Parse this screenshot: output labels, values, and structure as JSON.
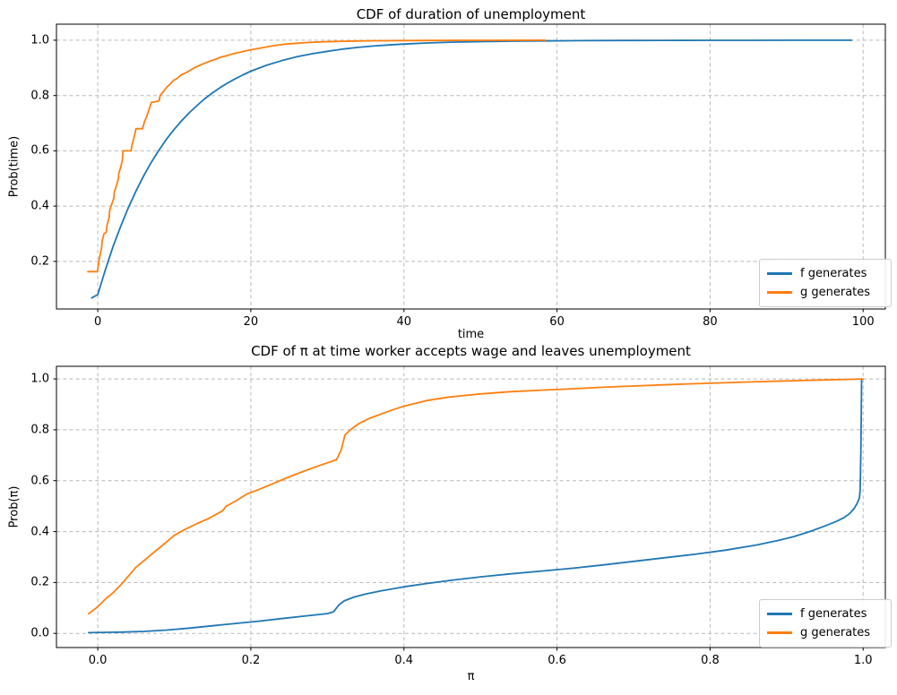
{
  "figure": {
    "background": "#ffffff"
  },
  "chart_data": [
    {
      "type": "line",
      "title": "CDF of duration of unemployment",
      "xlabel": "time",
      "ylabel": "Prob(time)",
      "xlim": [
        -5.4,
        102.9
      ],
      "ylim": [
        0.028,
        1.058
      ],
      "grid": true,
      "grid_color": "#b8b8b8",
      "legend": {
        "location": "lower right"
      },
      "xticks": {
        "values": [
          0,
          20,
          40,
          60,
          80,
          100
        ],
        "labels": [
          "0",
          "20",
          "40",
          "60",
          "80",
          "100"
        ]
      },
      "yticks": {
        "values": [
          0.2,
          0.4,
          0.6,
          0.8,
          1.0
        ],
        "labels": [
          "0.2",
          "0.4",
          "0.6",
          "0.8",
          "1.0"
        ]
      },
      "series": [
        {
          "name": "f generates",
          "color": "#1f77b4",
          "points": [
            [
              -0.8,
              0.068
            ],
            [
              0,
              0.08
            ],
            [
              1,
              0.171
            ],
            [
              2,
              0.254
            ],
            [
              3,
              0.327
            ],
            [
              4,
              0.395
            ],
            [
              5,
              0.455
            ],
            [
              6,
              0.51
            ],
            [
              7,
              0.559
            ],
            [
              8,
              0.603
            ],
            [
              9,
              0.643
            ],
            [
              10,
              0.678
            ],
            [
              11,
              0.71
            ],
            [
              12,
              0.739
            ],
            [
              13,
              0.765
            ],
            [
              14,
              0.789
            ],
            [
              15,
              0.81
            ],
            [
              16,
              0.829
            ],
            [
              17,
              0.846
            ],
            [
              18,
              0.861
            ],
            [
              19,
              0.875
            ],
            [
              20,
              0.888
            ],
            [
              22,
              0.909
            ],
            [
              24,
              0.926
            ],
            [
              26,
              0.94
            ],
            [
              28,
              0.951
            ],
            [
              30,
              0.96
            ],
            [
              32,
              0.968
            ],
            [
              34,
              0.974
            ],
            [
              36,
              0.979
            ],
            [
              38,
              0.983
            ],
            [
              40,
              0.986
            ],
            [
              43,
              0.99
            ],
            [
              46,
              0.993
            ],
            [
              50,
              0.995
            ],
            [
              54,
              0.9965
            ],
            [
              58,
              0.9975
            ],
            [
              63,
              0.9983
            ],
            [
              68,
              0.9989
            ],
            [
              74,
              0.9993
            ],
            [
              80,
              0.9996
            ],
            [
              86,
              0.9998
            ],
            [
              92,
              0.9999
            ],
            [
              98.5,
              1.0
            ]
          ]
        },
        {
          "name": "g generates",
          "color": "#ff7f0e",
          "points": [
            [
              -1.3,
              0.163
            ],
            [
              -0.05,
              0.163
            ],
            [
              0.2,
              0.21
            ],
            [
              0.5,
              0.25
            ],
            [
              0.55,
              0.27
            ],
            [
              0.8,
              0.3
            ],
            [
              1.1,
              0.305
            ],
            [
              1.2,
              0.33
            ],
            [
              1.5,
              0.36
            ],
            [
              1.55,
              0.385
            ],
            [
              1.8,
              0.405
            ],
            [
              2.1,
              0.43
            ],
            [
              2.15,
              0.45
            ],
            [
              2.4,
              0.47
            ],
            [
              2.7,
              0.5
            ],
            [
              2.75,
              0.52
            ],
            [
              3.0,
              0.54
            ],
            [
              3.2,
              0.565
            ],
            [
              3.3,
              0.6
            ],
            [
              4.35,
              0.6
            ],
            [
              4.5,
              0.625
            ],
            [
              4.8,
              0.655
            ],
            [
              5.0,
              0.68
            ],
            [
              5.85,
              0.68
            ],
            [
              6.1,
              0.705
            ],
            [
              6.4,
              0.725
            ],
            [
              6.7,
              0.75
            ],
            [
              7.0,
              0.775
            ],
            [
              8.0,
              0.78
            ],
            [
              8.15,
              0.8
            ],
            [
              8.6,
              0.815
            ],
            [
              9.0,
              0.83
            ],
            [
              9.4,
              0.84
            ],
            [
              9.9,
              0.855
            ],
            [
              10.4,
              0.862
            ],
            [
              10.9,
              0.875
            ],
            [
              11.5,
              0.882
            ],
            [
              12.0,
              0.89
            ],
            [
              12.6,
              0.9
            ],
            [
              13.2,
              0.908
            ],
            [
              13.9,
              0.916
            ],
            [
              14.6,
              0.924
            ],
            [
              15.3,
              0.93
            ],
            [
              16.0,
              0.938
            ],
            [
              16.8,
              0.944
            ],
            [
              17.6,
              0.95
            ],
            [
              18.5,
              0.956
            ],
            [
              19.4,
              0.962
            ],
            [
              20.3,
              0.967
            ],
            [
              21.3,
              0.972
            ],
            [
              22.3,
              0.977
            ],
            [
              23.4,
              0.982
            ],
            [
              24.6,
              0.986
            ],
            [
              26.0,
              0.989
            ],
            [
              27.5,
              0.992
            ],
            [
              29.0,
              0.994
            ],
            [
              31.0,
              0.9955
            ],
            [
              33.5,
              0.997
            ],
            [
              36.5,
              0.998
            ],
            [
              40.0,
              0.9987
            ],
            [
              44.0,
              0.9992
            ],
            [
              48.0,
              0.9996
            ],
            [
              52.0,
              0.9998
            ],
            [
              58.5,
              1.0
            ]
          ]
        }
      ]
    },
    {
      "type": "line",
      "title": "CDF of π at time worker accepts wage and leaves unemployment",
      "xlabel": "π",
      "ylabel": "Prob(π)",
      "xlim": [
        -0.054,
        1.029
      ],
      "ylim": [
        -0.0555,
        1.0495
      ],
      "grid": true,
      "grid_color": "#b8b8b8",
      "legend": {
        "location": "lower right"
      },
      "xticks": {
        "values": [
          0.0,
          0.2,
          0.4,
          0.6,
          0.8,
          1.0
        ],
        "labels": [
          "0.0",
          "0.2",
          "0.4",
          "0.6",
          "0.8",
          "1.0"
        ]
      },
      "yticks": {
        "values": [
          0.0,
          0.2,
          0.4,
          0.6,
          0.8,
          1.0
        ],
        "labels": [
          "0.0",
          "0.2",
          "0.4",
          "0.6",
          "0.8",
          "1.0"
        ]
      },
      "series": [
        {
          "name": "f generates",
          "color": "#1f77b4",
          "points": [
            [
              -0.012,
              0.003
            ],
            [
              0.03,
              0.005
            ],
            [
              0.06,
              0.008
            ],
            [
              0.09,
              0.013
            ],
            [
              0.12,
              0.021
            ],
            [
              0.15,
              0.03
            ],
            [
              0.18,
              0.039
            ],
            [
              0.21,
              0.048
            ],
            [
              0.24,
              0.058
            ],
            [
              0.27,
              0.068
            ],
            [
              0.3,
              0.078
            ],
            [
              0.308,
              0.085
            ],
            [
              0.315,
              0.112
            ],
            [
              0.322,
              0.128
            ],
            [
              0.335,
              0.143
            ],
            [
              0.35,
              0.155
            ],
            [
              0.37,
              0.167
            ],
            [
              0.4,
              0.183
            ],
            [
              0.43,
              0.196
            ],
            [
              0.46,
              0.208
            ],
            [
              0.5,
              0.222
            ],
            [
              0.54,
              0.234
            ],
            [
              0.58,
              0.245
            ],
            [
              0.62,
              0.256
            ],
            [
              0.66,
              0.269
            ],
            [
              0.7,
              0.283
            ],
            [
              0.74,
              0.297
            ],
            [
              0.78,
              0.311
            ],
            [
              0.82,
              0.327
            ],
            [
              0.86,
              0.347
            ],
            [
              0.89,
              0.366
            ],
            [
              0.91,
              0.381
            ],
            [
              0.93,
              0.4
            ],
            [
              0.95,
              0.422
            ],
            [
              0.965,
              0.44
            ],
            [
              0.975,
              0.455
            ],
            [
              0.982,
              0.47
            ],
            [
              0.988,
              0.49
            ],
            [
              0.992,
              0.51
            ],
            [
              0.995,
              0.532
            ],
            [
              0.996,
              0.56
            ],
            [
              0.9965,
              0.62
            ],
            [
              0.997,
              0.72
            ],
            [
              0.9975,
              0.85
            ],
            [
              0.998,
              1.0
            ]
          ]
        },
        {
          "name": "g generates",
          "color": "#ff7f0e",
          "points": [
            [
              -0.012,
              0.077
            ],
            [
              0.0,
              0.105
            ],
            [
              0.005,
              0.12
            ],
            [
              0.012,
              0.14
            ],
            [
              0.02,
              0.16
            ],
            [
              0.03,
              0.19
            ],
            [
              0.04,
              0.225
            ],
            [
              0.05,
              0.26
            ],
            [
              0.06,
              0.285
            ],
            [
              0.07,
              0.31
            ],
            [
              0.08,
              0.335
            ],
            [
              0.09,
              0.36
            ],
            [
              0.1,
              0.385
            ],
            [
              0.115,
              0.41
            ],
            [
              0.13,
              0.432
            ],
            [
              0.145,
              0.452
            ],
            [
              0.155,
              0.468
            ],
            [
              0.163,
              0.482
            ],
            [
              0.168,
              0.5
            ],
            [
              0.18,
              0.52
            ],
            [
              0.195,
              0.548
            ],
            [
              0.21,
              0.565
            ],
            [
              0.23,
              0.59
            ],
            [
              0.25,
              0.615
            ],
            [
              0.27,
              0.638
            ],
            [
              0.29,
              0.66
            ],
            [
              0.305,
              0.675
            ],
            [
              0.312,
              0.683
            ],
            [
              0.318,
              0.72
            ],
            [
              0.323,
              0.78
            ],
            [
              0.33,
              0.8
            ],
            [
              0.34,
              0.822
            ],
            [
              0.355,
              0.845
            ],
            [
              0.37,
              0.862
            ],
            [
              0.385,
              0.878
            ],
            [
              0.4,
              0.893
            ],
            [
              0.43,
              0.915
            ],
            [
              0.46,
              0.929
            ],
            [
              0.5,
              0.941
            ],
            [
              0.54,
              0.95
            ],
            [
              0.58,
              0.956
            ],
            [
              0.62,
              0.961
            ],
            [
              0.66,
              0.967
            ],
            [
              0.7,
              0.972
            ],
            [
              0.75,
              0.978
            ],
            [
              0.8,
              0.983
            ],
            [
              0.85,
              0.988
            ],
            [
              0.9,
              0.992
            ],
            [
              0.95,
              0.996
            ],
            [
              0.99,
              0.999
            ],
            [
              1.0,
              1.0
            ]
          ]
        }
      ]
    }
  ]
}
